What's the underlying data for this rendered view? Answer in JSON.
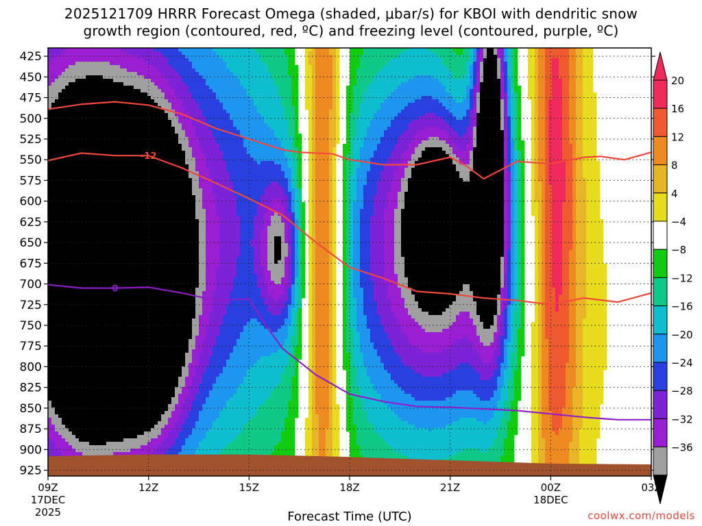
{
  "title_line1": "2025121709 HRRR Forecast Omega (shaded, μbar/s) for KBOI with dendritic snow",
  "title_line2": "growth region (contoured, red, ºC) and freezing level (contoured, purple, ºC)",
  "credit": "coolwx.com/models",
  "colors": {
    "neg36": "#000000",
    "neg32": "#a0a0a0",
    "neg28": "#9b1fd2",
    "neg24": "#7c23d8",
    "neg20": "#2a3fe0",
    "neg16": "#1e96f0",
    "neg12": "#0fbfd0",
    "neg8": "#10c888",
    "neg4": "#12cc12",
    "zero": "#ffffff",
    "pos4": "#e8dc1e",
    "pos8": "#e8b428",
    "pos12": "#ee8a22",
    "pos16": "#f05a30",
    "pos20": "#f02a5a",
    "terrain": "#a0522d",
    "dgz": "#f0483c",
    "freezing": "#8c1ec8"
  },
  "chart_data": {
    "type": "heatmap",
    "title": "2025121709 HRRR Forecast Omega (shaded, μbar/s) for KBOI with dendritic snow growth region (contoured, red, ºC) and freezing level (contoured, purple, ºC)",
    "xlabel": "Forecast Time (UTC)",
    "x_ticks": [
      {
        "hour": 0,
        "label": "09Z",
        "sub1": "17DEC",
        "sub2": "2025"
      },
      {
        "hour": 3,
        "label": "12Z",
        "sub1": "",
        "sub2": ""
      },
      {
        "hour": 6,
        "label": "15Z",
        "sub1": "",
        "sub2": ""
      },
      {
        "hour": 9,
        "label": "18Z",
        "sub1": "",
        "sub2": ""
      },
      {
        "hour": 12,
        "label": "21Z",
        "sub1": "",
        "sub2": ""
      },
      {
        "hour": 15,
        "label": "00Z",
        "sub1": "18DEC",
        "sub2": ""
      },
      {
        "hour": 18,
        "label": "03Z",
        "sub1": "",
        "sub2": ""
      }
    ],
    "xlim": [
      0,
      18
    ],
    "y_ticks": [
      425,
      450,
      475,
      500,
      525,
      550,
      575,
      600,
      625,
      650,
      675,
      700,
      725,
      750,
      775,
      800,
      825,
      850,
      875,
      900,
      925
    ],
    "ylim": [
      925,
      425
    ],
    "grid": true,
    "legend_levels": [
      "20",
      "16",
      "12",
      "8",
      "4",
      "−4",
      "−8",
      "−12",
      "−16",
      "−20",
      "−24",
      "−28",
      "−32",
      "−36"
    ],
    "contour_labels": {
      "dgz_label": "-12",
      "freezing_label": "0"
    },
    "omega_blobs": [
      {
        "x": 0.8,
        "y": 640,
        "sx": 2.6,
        "sy": 230,
        "amp": -40
      },
      {
        "x": 1.3,
        "y": 690,
        "sx": 0.85,
        "sy": 120,
        "amp": -42
      },
      {
        "x": 3.0,
        "y": 690,
        "sx": 0.75,
        "sy": 120,
        "amp": -40
      },
      {
        "x": 2.2,
        "y": 710,
        "sx": 2.2,
        "sy": 150,
        "amp": -8
      },
      {
        "x": 5.6,
        "y": 620,
        "sx": 1.8,
        "sy": 200,
        "amp": -14
      },
      {
        "x": 6.9,
        "y": 660,
        "sx": 0.4,
        "sy": 60,
        "amp": -20
      },
      {
        "x": 8.2,
        "y": 640,
        "sx": 0.45,
        "sy": 280,
        "amp": 30
      },
      {
        "x": 11.6,
        "y": 650,
        "sx": 1.8,
        "sy": 150,
        "amp": -30
      },
      {
        "x": 11.6,
        "y": 620,
        "sx": 0.5,
        "sy": 55,
        "amp": -30
      },
      {
        "x": 13.2,
        "y": 520,
        "sx": 0.35,
        "sy": 170,
        "amp": -40
      },
      {
        "x": 11.0,
        "y": 720,
        "sx": 2.6,
        "sy": 250,
        "amp": -8
      },
      {
        "x": 12.6,
        "y": 430,
        "sx": 0.6,
        "sy": 110,
        "amp": 6
      },
      {
        "x": 15.1,
        "y": 600,
        "sx": 0.55,
        "sy": 310,
        "amp": 24
      },
      {
        "x": 16.3,
        "y": 720,
        "sx": 1.8,
        "sy": 260,
        "amp": 5
      }
    ],
    "dgz_upper_line": [
      {
        "x": 0,
        "p": 489
      },
      {
        "x": 1,
        "p": 483
      },
      {
        "x": 2,
        "p": 480
      },
      {
        "x": 3,
        "p": 484
      },
      {
        "x": 4,
        "p": 495
      },
      {
        "x": 5,
        "p": 512
      },
      {
        "x": 6,
        "p": 525
      },
      {
        "x": 7,
        "p": 538
      },
      {
        "x": 7.5,
        "p": 541
      },
      {
        "x": 8.5,
        "p": 543
      },
      {
        "x": 9,
        "p": 550
      },
      {
        "x": 10,
        "p": 556
      },
      {
        "x": 11,
        "p": 556
      },
      {
        "x": 12,
        "p": 547
      },
      {
        "x": 12.5,
        "p": 558
      },
      {
        "x": 13,
        "p": 573
      },
      {
        "x": 14,
        "p": 552
      },
      {
        "x": 15,
        "p": 555
      },
      {
        "x": 16,
        "p": 547
      },
      {
        "x": 16.5,
        "p": 546
      },
      {
        "x": 17.2,
        "p": 550
      },
      {
        "x": 18,
        "p": 541
      }
    ],
    "dgz_lower_line": [
      {
        "x": 0,
        "p": 551
      },
      {
        "x": 1,
        "p": 542
      },
      {
        "x": 2,
        "p": 545
      },
      {
        "x": 3,
        "p": 545
      },
      {
        "x": 4,
        "p": 560
      },
      {
        "x": 5,
        "p": 578
      },
      {
        "x": 6,
        "p": 597
      },
      {
        "x": 7,
        "p": 617
      },
      {
        "x": 8,
        "p": 650
      },
      {
        "x": 9,
        "p": 680
      },
      {
        "x": 10,
        "p": 693
      },
      {
        "x": 11,
        "p": 709
      },
      {
        "x": 12,
        "p": 712
      },
      {
        "x": 13,
        "p": 717
      },
      {
        "x": 14,
        "p": 720
      },
      {
        "x": 15,
        "p": 725
      },
      {
        "x": 16,
        "p": 717
      },
      {
        "x": 17,
        "p": 722
      },
      {
        "x": 18,
        "p": 711
      }
    ],
    "freezing_line": [
      {
        "x": 0,
        "p": 701
      },
      {
        "x": 1,
        "p": 705
      },
      {
        "x": 2,
        "p": 705
      },
      {
        "x": 3,
        "p": 704
      },
      {
        "x": 4,
        "p": 711
      },
      {
        "x": 5,
        "p": 720
      },
      {
        "x": 6,
        "p": 718
      },
      {
        "x": 6.5,
        "p": 750
      },
      {
        "x": 7,
        "p": 778
      },
      {
        "x": 8,
        "p": 810
      },
      {
        "x": 9,
        "p": 833
      },
      {
        "x": 10,
        "p": 842
      },
      {
        "x": 11,
        "p": 848
      },
      {
        "x": 12,
        "p": 849
      },
      {
        "x": 13,
        "p": 851
      },
      {
        "x": 14,
        "p": 853
      },
      {
        "x": 15,
        "p": 857
      },
      {
        "x": 16,
        "p": 861
      },
      {
        "x": 17,
        "p": 864
      },
      {
        "x": 18,
        "p": 864
      }
    ],
    "terrain_top": [
      {
        "x": 0,
        "p": 908
      },
      {
        "x": 3,
        "p": 906
      },
      {
        "x": 6,
        "p": 906
      },
      {
        "x": 9,
        "p": 909
      },
      {
        "x": 12,
        "p": 913
      },
      {
        "x": 15,
        "p": 917
      },
      {
        "x": 18,
        "p": 918
      }
    ]
  }
}
